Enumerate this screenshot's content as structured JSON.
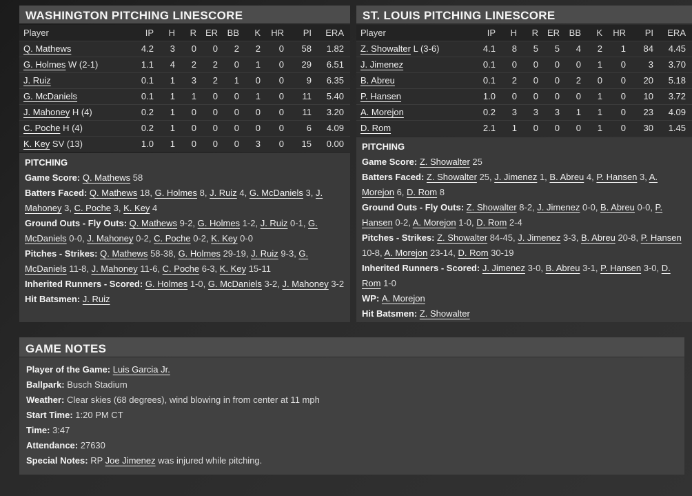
{
  "colors": {
    "page_bg": "#2a2a2a",
    "panel_title_bg": "#4c4c4c",
    "table_header_bg": "#232323",
    "table_row_bg": "#2c2c2c",
    "notes_bg": "#3a3a3a",
    "game_notes_bg": "#414141",
    "text": "#e6e6e6",
    "link": "#f2f2f2"
  },
  "panels": [
    {
      "title": "WASHINGTON PITCHING LINESCORE",
      "columns": [
        "Player",
        "IP",
        "H",
        "R",
        "ER",
        "BB",
        "K",
        "HR",
        "PI",
        "ERA"
      ],
      "rows": [
        {
          "player": "Q. Mathews",
          "suffix": "",
          "stats": [
            "4.2",
            "3",
            "0",
            "0",
            "2",
            "2",
            "0",
            "58",
            "1.82"
          ]
        },
        {
          "player": "G. Holmes",
          "suffix": " W (2-1)",
          "stats": [
            "1.1",
            "4",
            "2",
            "2",
            "0",
            "1",
            "0",
            "29",
            "6.51"
          ]
        },
        {
          "player": "J. Ruiz",
          "suffix": "",
          "stats": [
            "0.1",
            "1",
            "3",
            "2",
            "1",
            "0",
            "0",
            "9",
            "6.35"
          ]
        },
        {
          "player": "G. McDaniels",
          "suffix": "",
          "stats": [
            "0.1",
            "1",
            "1",
            "0",
            "0",
            "1",
            "0",
            "11",
            "5.40"
          ]
        },
        {
          "player": "J. Mahoney",
          "suffix": " H (4)",
          "stats": [
            "0.2",
            "1",
            "0",
            "0",
            "0",
            "0",
            "0",
            "11",
            "3.20"
          ]
        },
        {
          "player": "C. Poche",
          "suffix": " H (4)",
          "stats": [
            "0.2",
            "1",
            "0",
            "0",
            "0",
            "0",
            "0",
            "6",
            "4.09"
          ]
        },
        {
          "player": "K. Key",
          "suffix": " SV (13)",
          "stats": [
            "1.0",
            "1",
            "0",
            "0",
            "0",
            "3",
            "0",
            "15",
            "0.00"
          ]
        }
      ],
      "notes_heading": "PITCHING",
      "notes": [
        {
          "label": "Game Score:",
          "segments": [
            {
              "l": "Q. Mathews"
            },
            {
              "t": " 58"
            }
          ]
        },
        {
          "label": "Batters Faced:",
          "segments": [
            {
              "l": "Q. Mathews"
            },
            {
              "t": " 18, "
            },
            {
              "l": "G. Holmes"
            },
            {
              "t": " 8, "
            },
            {
              "l": "J. Ruiz"
            },
            {
              "t": " 4, "
            },
            {
              "l": "G. McDaniels"
            },
            {
              "t": " 3, "
            },
            {
              "l": "J. Mahoney"
            },
            {
              "t": " 3, "
            },
            {
              "l": "C. Poche"
            },
            {
              "t": " 3, "
            },
            {
              "l": "K. Key"
            },
            {
              "t": " 4"
            }
          ]
        },
        {
          "label": "Ground Outs - Fly Outs:",
          "segments": [
            {
              "l": "Q. Mathews"
            },
            {
              "t": " 9-2, "
            },
            {
              "l": "G. Holmes"
            },
            {
              "t": " 1-2, "
            },
            {
              "l": "J. Ruiz"
            },
            {
              "t": " 0-1, "
            },
            {
              "l": "G. McDaniels"
            },
            {
              "t": " 0-0, "
            },
            {
              "l": "J. Mahoney"
            },
            {
              "t": " 0-2, "
            },
            {
              "l": "C. Poche"
            },
            {
              "t": " 0-2, "
            },
            {
              "l": "K. Key"
            },
            {
              "t": " 0-0"
            }
          ]
        },
        {
          "label": "Pitches - Strikes:",
          "segments": [
            {
              "l": "Q. Mathews"
            },
            {
              "t": " 58-38, "
            },
            {
              "l": "G. Holmes"
            },
            {
              "t": " 29-19, "
            },
            {
              "l": "J. Ruiz"
            },
            {
              "t": " 9-3, "
            },
            {
              "l": "G. McDaniels"
            },
            {
              "t": " 11-8, "
            },
            {
              "l": "J. Mahoney"
            },
            {
              "t": " 11-6, "
            },
            {
              "l": "C. Poche"
            },
            {
              "t": " 6-3, "
            },
            {
              "l": "K. Key"
            },
            {
              "t": " 15-11"
            }
          ]
        },
        {
          "label": "Inherited Runners - Scored:",
          "segments": [
            {
              "l": "G. Holmes"
            },
            {
              "t": " 1-0, "
            },
            {
              "l": "G. McDaniels"
            },
            {
              "t": " 3-2, "
            },
            {
              "l": "J. Mahoney"
            },
            {
              "t": " 3-2"
            }
          ]
        },
        {
          "label": "Hit Batsmen:",
          "segments": [
            {
              "l": "J. Ruiz"
            }
          ]
        }
      ]
    },
    {
      "title": "ST. LOUIS PITCHING LINESCORE",
      "columns": [
        "Player",
        "IP",
        "H",
        "R",
        "ER",
        "BB",
        "K",
        "HR",
        "PI",
        "ERA"
      ],
      "rows": [
        {
          "player": "Z. Showalter",
          "suffix": " L (3-6)",
          "stats": [
            "4.1",
            "8",
            "5",
            "5",
            "4",
            "2",
            "1",
            "84",
            "4.45"
          ]
        },
        {
          "player": "J. Jimenez",
          "suffix": "",
          "stats": [
            "0.1",
            "0",
            "0",
            "0",
            "0",
            "1",
            "0",
            "3",
            "3.70"
          ]
        },
        {
          "player": "B. Abreu",
          "suffix": "",
          "stats": [
            "0.1",
            "2",
            "0",
            "0",
            "2",
            "0",
            "0",
            "20",
            "5.18"
          ]
        },
        {
          "player": "P. Hansen",
          "suffix": "",
          "stats": [
            "1.0",
            "0",
            "0",
            "0",
            "0",
            "1",
            "0",
            "10",
            "3.72"
          ]
        },
        {
          "player": "A. Morejon",
          "suffix": "",
          "stats": [
            "0.2",
            "3",
            "3",
            "3",
            "1",
            "1",
            "0",
            "23",
            "4.09"
          ]
        },
        {
          "player": "D. Rom",
          "suffix": "",
          "stats": [
            "2.1",
            "1",
            "0",
            "0",
            "0",
            "1",
            "0",
            "30",
            "1.45"
          ]
        }
      ],
      "notes_heading": "PITCHING",
      "notes": [
        {
          "label": "Game Score:",
          "segments": [
            {
              "l": "Z. Showalter"
            },
            {
              "t": " 25"
            }
          ]
        },
        {
          "label": "Batters Faced:",
          "segments": [
            {
              "l": "Z. Showalter"
            },
            {
              "t": " 25, "
            },
            {
              "l": "J. Jimenez"
            },
            {
              "t": " 1, "
            },
            {
              "l": "B. Abreu"
            },
            {
              "t": " 4, "
            },
            {
              "l": "P. Hansen"
            },
            {
              "t": " 3, "
            },
            {
              "l": "A. Morejon"
            },
            {
              "t": " 6, "
            },
            {
              "l": "D. Rom"
            },
            {
              "t": " 8"
            }
          ]
        },
        {
          "label": "Ground Outs - Fly Outs:",
          "segments": [
            {
              "l": "Z. Showalter"
            },
            {
              "t": " 8-2, "
            },
            {
              "l": "J. Jimenez"
            },
            {
              "t": " 0-0, "
            },
            {
              "l": "B. Abreu"
            },
            {
              "t": " 0-0, "
            },
            {
              "l": "P. Hansen"
            },
            {
              "t": " 0-2, "
            },
            {
              "l": "A. Morejon"
            },
            {
              "t": " 1-0, "
            },
            {
              "l": "D. Rom"
            },
            {
              "t": " 2-4"
            }
          ]
        },
        {
          "label": "Pitches - Strikes:",
          "segments": [
            {
              "l": "Z. Showalter"
            },
            {
              "t": " 84-45, "
            },
            {
              "l": "J. Jimenez"
            },
            {
              "t": " 3-3, "
            },
            {
              "l": "B. Abreu"
            },
            {
              "t": " 20-8, "
            },
            {
              "l": "P. Hansen"
            },
            {
              "t": " 10-8, "
            },
            {
              "l": "A. Morejon"
            },
            {
              "t": " 23-14, "
            },
            {
              "l": "D. Rom"
            },
            {
              "t": " 30-19"
            }
          ]
        },
        {
          "label": "Inherited Runners - Scored:",
          "segments": [
            {
              "l": "J. Jimenez"
            },
            {
              "t": " 3-0, "
            },
            {
              "l": "B. Abreu"
            },
            {
              "t": " 3-1, "
            },
            {
              "l": "P. Hansen"
            },
            {
              "t": " 3-0, "
            },
            {
              "l": "D. Rom"
            },
            {
              "t": " 1-0"
            }
          ]
        },
        {
          "label": "WP:",
          "segments": [
            {
              "l": "A. Morejon"
            }
          ]
        },
        {
          "label": "Hit Batsmen:",
          "segments": [
            {
              "l": "Z. Showalter"
            }
          ]
        }
      ]
    }
  ],
  "game_notes": {
    "title": "GAME NOTES",
    "lines": [
      {
        "label": "Player of the Game:",
        "segments": [
          {
            "l": "Luis Garcia Jr."
          }
        ]
      },
      {
        "label": "Ballpark:",
        "segments": [
          {
            "t": "Busch Stadium"
          }
        ]
      },
      {
        "label": "Weather:",
        "segments": [
          {
            "t": "Clear skies (68 degrees), wind blowing in from center at 11 mph"
          }
        ]
      },
      {
        "label": "Start Time:",
        "segments": [
          {
            "t": "1:20 PM CT"
          }
        ]
      },
      {
        "label": "Time:",
        "segments": [
          {
            "t": "3:47"
          }
        ]
      },
      {
        "label": "Attendance:",
        "segments": [
          {
            "t": "27630"
          }
        ]
      },
      {
        "label": "Special Notes:",
        "segments": [
          {
            "t": "RP "
          },
          {
            "l": "Joe Jimenez"
          },
          {
            "t": " was injured while pitching."
          }
        ]
      }
    ]
  }
}
